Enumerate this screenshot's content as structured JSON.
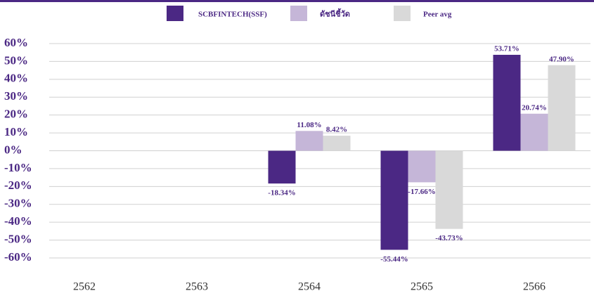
{
  "chart_data": {
    "type": "bar",
    "categories": [
      "2562",
      "2563",
      "2564",
      "2565",
      "2566"
    ],
    "series": [
      {
        "name": "SCBFINTECH(SSF)",
        "color": "#4b2884",
        "values": [
          null,
          null,
          -18.34,
          -55.44,
          53.71
        ],
        "value_labels": [
          null,
          null,
          "-18.34%",
          "-55.44%",
          "53.71%"
        ]
      },
      {
        "name": "ดัชนีชี้วัด",
        "color": "#c5b6d8",
        "values": [
          null,
          null,
          11.08,
          -17.66,
          20.74
        ],
        "value_labels": [
          null,
          null,
          "11.08%",
          "-17.66%",
          "20.74%"
        ]
      },
      {
        "name": "Peer avg",
        "color": "#d9d9d9",
        "values": [
          null,
          null,
          8.42,
          -43.73,
          47.9
        ],
        "value_labels": [
          null,
          null,
          "8.42%",
          "-43.73%",
          "47.90%"
        ]
      }
    ],
    "ylim": [
      -60,
      60
    ],
    "yticks": [
      {
        "value": 60,
        "label": "60%"
      },
      {
        "value": 50,
        "label": "50%"
      },
      {
        "value": 40,
        "label": "40%"
      },
      {
        "value": 30,
        "label": "30%"
      },
      {
        "value": 20,
        "label": "20%"
      },
      {
        "value": 10,
        "label": "10%"
      },
      {
        "value": 0,
        "label": "0%"
      },
      {
        "value": -10,
        "label": "-10%"
      },
      {
        "value": -20,
        "label": "-20%"
      },
      {
        "value": -30,
        "label": "-30%"
      },
      {
        "value": -40,
        "label": "-40%"
      },
      {
        "value": -50,
        "label": "-50%"
      },
      {
        "value": -60,
        "label": "-60%"
      }
    ],
    "grid": true,
    "legend": "top"
  }
}
